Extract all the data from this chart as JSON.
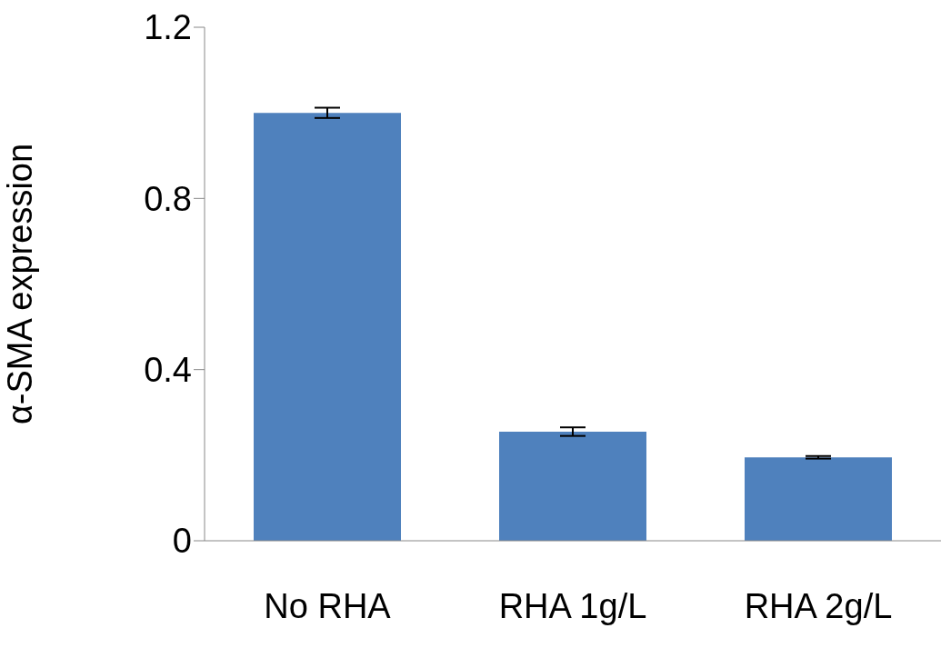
{
  "chart_data": {
    "type": "bar",
    "ylabel": "α-SMA expression",
    "categories": [
      "No RHA",
      "RHA 1g/L",
      "RHA 2g/L"
    ],
    "values": [
      1.0,
      0.255,
      0.195
    ],
    "errors": [
      0.012,
      0.01,
      0.003
    ],
    "color": "#4f81bd",
    "ylim": [
      0,
      1.2
    ],
    "yticks": [
      0,
      0.4,
      0.8,
      1.2
    ],
    "grid": false,
    "legend": false
  }
}
